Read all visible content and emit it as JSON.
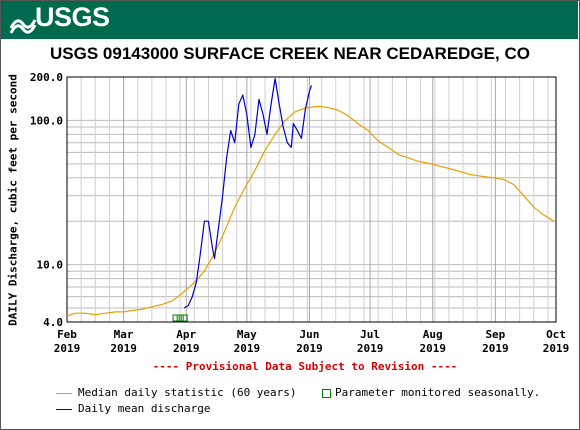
{
  "header": {
    "logo_text": "USGS",
    "brand_color": "#006a4e"
  },
  "chart_data": {
    "type": "line",
    "title": "USGS 09143000 SURFACE CREEK NEAR CEDAREDGE, CO",
    "ylabel": "DAILY Discharge, cubic feet per second",
    "yscale": "log",
    "ylim": [
      4.0,
      200.0
    ],
    "ytick_labels": [
      "200.0",
      "100.0",
      "10.0",
      "4.0"
    ],
    "ytick_values": [
      200,
      100,
      10,
      4
    ],
    "xlim": [
      "2019-02-01",
      "2019-10-01"
    ],
    "xtick_labels": [
      {
        "month": "Feb",
        "year": "2019",
        "date": "2019-02-01"
      },
      {
        "month": "Mar",
        "year": "2019",
        "date": "2019-03-01"
      },
      {
        "month": "Apr",
        "year": "2019",
        "date": "2019-04-01"
      },
      {
        "month": "May",
        "year": "2019",
        "date": "2019-05-01"
      },
      {
        "month": "Jun",
        "year": "2019",
        "date": "2019-06-01"
      },
      {
        "month": "Jul",
        "year": "2019",
        "date": "2019-07-01"
      },
      {
        "month": "Aug",
        "year": "2019",
        "date": "2019-08-01"
      },
      {
        "month": "Sep",
        "year": "2019",
        "date": "2019-09-01"
      },
      {
        "month": "Oct",
        "year": "2019",
        "date": "2019-10-01"
      }
    ],
    "grid": true,
    "series": [
      {
        "name": "Median daily statistic (60 years)",
        "color": "#e8a000",
        "points": [
          [
            "2019-02-01",
            4.4
          ],
          [
            "2019-02-05",
            4.6
          ],
          [
            "2019-02-10",
            4.6
          ],
          [
            "2019-02-15",
            4.5
          ],
          [
            "2019-02-20",
            4.6
          ],
          [
            "2019-02-25",
            4.7
          ],
          [
            "2019-03-01",
            4.7
          ],
          [
            "2019-03-05",
            4.8
          ],
          [
            "2019-03-10",
            4.9
          ],
          [
            "2019-03-15",
            5.1
          ],
          [
            "2019-03-20",
            5.3
          ],
          [
            "2019-03-25",
            5.6
          ],
          [
            "2019-03-28",
            6.0
          ],
          [
            "2019-04-01",
            6.7
          ],
          [
            "2019-04-05",
            7.5
          ],
          [
            "2019-04-10",
            9.0
          ],
          [
            "2019-04-15",
            12.0
          ],
          [
            "2019-04-20",
            17.0
          ],
          [
            "2019-04-25",
            25.0
          ],
          [
            "2019-04-30",
            34.0
          ],
          [
            "2019-05-05",
            45.0
          ],
          [
            "2019-05-10",
            62.0
          ],
          [
            "2019-05-15",
            80.0
          ],
          [
            "2019-05-20",
            100.0
          ],
          [
            "2019-05-25",
            115.0
          ],
          [
            "2019-05-30",
            122.0
          ],
          [
            "2019-06-05",
            125.0
          ],
          [
            "2019-06-10",
            123.0
          ],
          [
            "2019-06-15",
            118.0
          ],
          [
            "2019-06-20",
            108.0
          ],
          [
            "2019-06-25",
            95.0
          ],
          [
            "2019-06-30",
            85.0
          ],
          [
            "2019-07-05",
            72.0
          ],
          [
            "2019-07-10",
            65.0
          ],
          [
            "2019-07-15",
            58.0
          ],
          [
            "2019-07-20",
            55.0
          ],
          [
            "2019-07-25",
            52.0
          ],
          [
            "2019-07-31",
            50.0
          ],
          [
            "2019-08-05",
            48.0
          ],
          [
            "2019-08-10",
            46.0
          ],
          [
            "2019-08-15",
            44.0
          ],
          [
            "2019-08-20",
            42.0
          ],
          [
            "2019-08-25",
            41.0
          ],
          [
            "2019-08-31",
            40.0
          ],
          [
            "2019-09-05",
            39.0
          ],
          [
            "2019-09-10",
            36.0
          ],
          [
            "2019-09-15",
            30.0
          ],
          [
            "2019-09-20",
            25.0
          ],
          [
            "2019-09-25",
            22.0
          ],
          [
            "2019-09-30",
            20.0
          ]
        ]
      },
      {
        "name": "Daily mean discharge",
        "color": "#0000cc",
        "points": [
          [
            "2019-03-31",
            5.0
          ],
          [
            "2019-04-02",
            5.2
          ],
          [
            "2019-04-04",
            6.0
          ],
          [
            "2019-04-06",
            7.5
          ],
          [
            "2019-04-08",
            12.0
          ],
          [
            "2019-04-10",
            20.0
          ],
          [
            "2019-04-12",
            20.0
          ],
          [
            "2019-04-14",
            13.0
          ],
          [
            "2019-04-15",
            11.0
          ],
          [
            "2019-04-17",
            18.0
          ],
          [
            "2019-04-19",
            30.0
          ],
          [
            "2019-04-21",
            55.0
          ],
          [
            "2019-04-23",
            85.0
          ],
          [
            "2019-04-25",
            70.0
          ],
          [
            "2019-04-27",
            130.0
          ],
          [
            "2019-04-29",
            150.0
          ],
          [
            "2019-05-01",
            110.0
          ],
          [
            "2019-05-03",
            65.0
          ],
          [
            "2019-05-05",
            80.0
          ],
          [
            "2019-05-07",
            140.0
          ],
          [
            "2019-05-09",
            110.0
          ],
          [
            "2019-05-11",
            80.0
          ],
          [
            "2019-05-13",
            130.0
          ],
          [
            "2019-05-15",
            195.0
          ],
          [
            "2019-05-17",
            130.0
          ],
          [
            "2019-05-19",
            90.0
          ],
          [
            "2019-05-21",
            70.0
          ],
          [
            "2019-05-23",
            65.0
          ],
          [
            "2019-05-24",
            95.0
          ],
          [
            "2019-05-26",
            85.0
          ],
          [
            "2019-05-28",
            75.0
          ],
          [
            "2019-05-30",
            120.0
          ],
          [
            "2019-06-01",
            160.0
          ],
          [
            "2019-06-02",
            175.0
          ]
        ]
      }
    ],
    "annotation": "---- Provisional Data Subject to Revision ----",
    "seasonal_note": "Parameter monitored seasonally.",
    "seasonal_marker_color": "#008000",
    "seasonal_marker_count": 3,
    "seasonal_marker_dates": [
      "2019-03-27",
      "2019-03-29",
      "2019-03-31"
    ]
  },
  "legend": {
    "median_label": "Median daily statistic (60 years)",
    "seasonal_label": "Parameter monitored seasonally.",
    "daily_label": "Daily mean discharge"
  }
}
